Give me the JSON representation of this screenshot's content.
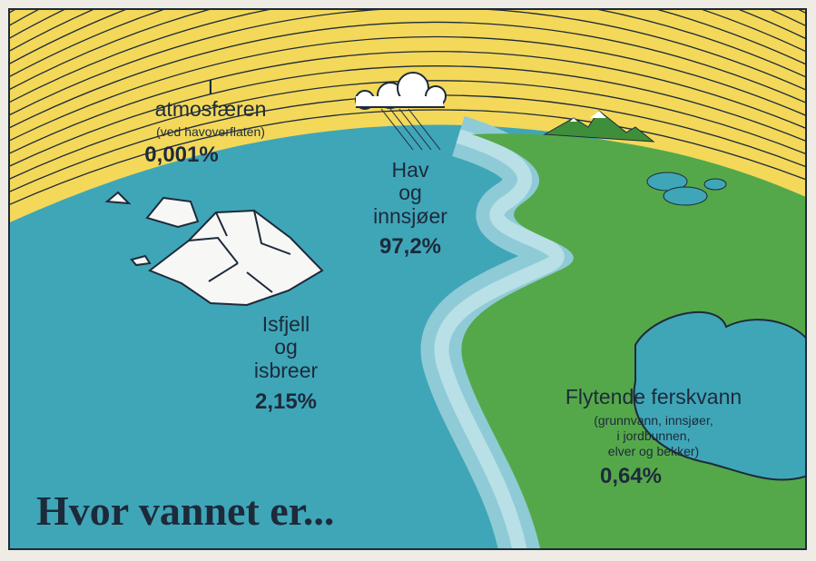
{
  "title": "Hvor vannet er...",
  "atmosphere": {
    "lines": [
      "I",
      "atmosfæren",
      "(ved havoverflaten)"
    ],
    "value": "0,001%"
  },
  "ocean": {
    "lines": [
      "Hav",
      "og",
      "innsjøer"
    ],
    "value": "97,2%"
  },
  "ice": {
    "lines": [
      "Isfjell",
      "og",
      "isbreer"
    ],
    "value": "2,15%"
  },
  "freshwater": {
    "lines": [
      "Flytende ferskvann",
      "(grunnvann, innsjøer,",
      "i jordbunnen,",
      "elver og bekker)"
    ],
    "value": "0,64%"
  }
}
